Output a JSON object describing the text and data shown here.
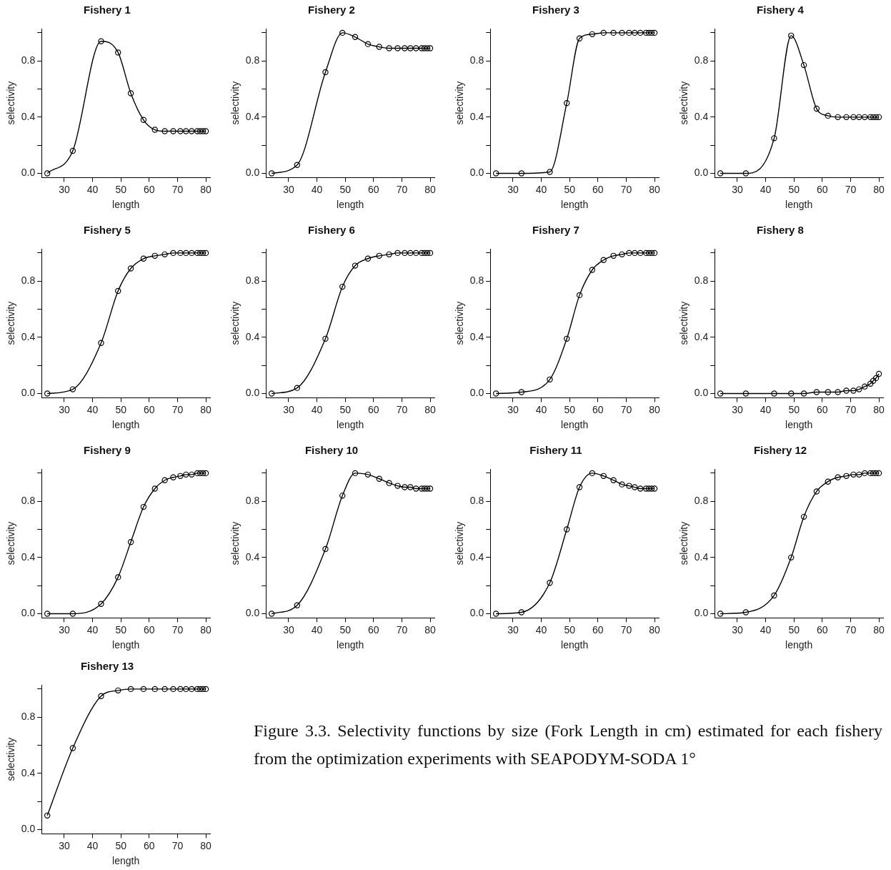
{
  "chart_data": [
    {
      "type": "line",
      "title": "Fishery 1",
      "xlabel": "length",
      "ylabel": "selectivity",
      "x": [
        24,
        33,
        43,
        49,
        53.5,
        58,
        62,
        65.5,
        68.5,
        71,
        73,
        75,
        77,
        78,
        79,
        80
      ],
      "xlim": [
        22,
        81.5
      ],
      "xticks": [
        30,
        40,
        50,
        60,
        70,
        80
      ],
      "ylim": [
        -0.03,
        1.03
      ],
      "yticks": [
        {
          "value": 0,
          "label": "0.0"
        },
        {
          "value": 0.2,
          "label": null
        },
        {
          "value": 0.4,
          "label": "0.4"
        },
        {
          "value": 0.6,
          "label": null
        },
        {
          "value": 0.8,
          "label": "0.8"
        },
        {
          "value": 1,
          "label": null
        }
      ],
      "marker": "circle",
      "line_style": "solid",
      "grid": false,
      "legend": false,
      "series": [
        {
          "color": "#000000",
          "values": [
            0,
            0.16,
            0.94,
            0.86,
            0.57,
            0.38,
            0.31,
            0.3,
            0.3,
            0.3,
            0.3,
            0.3,
            0.3,
            0.3,
            0.3,
            0.3
          ]
        }
      ]
    },
    {
      "type": "line",
      "title": "Fishery 2",
      "xlabel": "length",
      "ylabel": "selectivity",
      "x": [
        24,
        33,
        43,
        49,
        53.5,
        58,
        62,
        65.5,
        68.5,
        71,
        73,
        75,
        77,
        78,
        79,
        80
      ],
      "xlim": [
        22,
        81.5
      ],
      "xticks": [
        30,
        40,
        50,
        60,
        70,
        80
      ],
      "ylim": [
        -0.03,
        1.03
      ],
      "yticks": [
        {
          "value": 0,
          "label": "0.0"
        },
        {
          "value": 0.2,
          "label": null
        },
        {
          "value": 0.4,
          "label": "0.4"
        },
        {
          "value": 0.6,
          "label": null
        },
        {
          "value": 0.8,
          "label": "0.8"
        },
        {
          "value": 1,
          "label": null
        }
      ],
      "marker": "circle",
      "line_style": "solid",
      "grid": false,
      "legend": false,
      "series": [
        {
          "color": "#000000",
          "values": [
            0,
            0.06,
            0.72,
            1,
            0.97,
            0.92,
            0.9,
            0.89,
            0.89,
            0.89,
            0.89,
            0.89,
            0.89,
            0.89,
            0.89,
            0.89
          ]
        }
      ]
    },
    {
      "type": "line",
      "title": "Fishery 3",
      "xlabel": "length",
      "ylabel": "selectivity",
      "x": [
        24,
        33,
        43,
        49,
        53.5,
        58,
        62,
        65.5,
        68.5,
        71,
        73,
        75,
        77,
        78,
        79,
        80
      ],
      "xlim": [
        22,
        81.5
      ],
      "xticks": [
        30,
        40,
        50,
        60,
        70,
        80
      ],
      "ylim": [
        -0.03,
        1.03
      ],
      "yticks": [
        {
          "value": 0,
          "label": "0.0"
        },
        {
          "value": 0.2,
          "label": null
        },
        {
          "value": 0.4,
          "label": "0.4"
        },
        {
          "value": 0.6,
          "label": null
        },
        {
          "value": 0.8,
          "label": "0.8"
        },
        {
          "value": 1,
          "label": null
        }
      ],
      "marker": "circle",
      "line_style": "solid",
      "grid": false,
      "legend": false,
      "series": [
        {
          "color": "#000000",
          "values": [
            0,
            0,
            0.01,
            0.5,
            0.96,
            0.99,
            1,
            1,
            1,
            1,
            1,
            1,
            1,
            1,
            1,
            1
          ]
        }
      ]
    },
    {
      "type": "line",
      "title": "Fishery 4",
      "xlabel": "length",
      "ylabel": "selectivity",
      "x": [
        24,
        33,
        43,
        49,
        53.5,
        58,
        62,
        65.5,
        68.5,
        71,
        73,
        75,
        77,
        78,
        79,
        80
      ],
      "xlim": [
        22,
        81.5
      ],
      "xticks": [
        30,
        40,
        50,
        60,
        70,
        80
      ],
      "ylim": [
        -0.03,
        1.03
      ],
      "yticks": [
        {
          "value": 0,
          "label": "0.0"
        },
        {
          "value": 0.2,
          "label": null
        },
        {
          "value": 0.4,
          "label": "0.4"
        },
        {
          "value": 0.6,
          "label": null
        },
        {
          "value": 0.8,
          "label": "0.8"
        },
        {
          "value": 1,
          "label": null
        }
      ],
      "marker": "circle",
      "line_style": "solid",
      "grid": false,
      "legend": false,
      "series": [
        {
          "color": "#000000",
          "values": [
            0,
            0,
            0.25,
            0.98,
            0.77,
            0.46,
            0.41,
            0.4,
            0.4,
            0.4,
            0.4,
            0.4,
            0.4,
            0.4,
            0.4,
            0.4
          ]
        }
      ]
    },
    {
      "type": "line",
      "title": "Fishery 5",
      "xlabel": "length",
      "ylabel": "selectivity",
      "x": [
        24,
        33,
        43,
        49,
        53.5,
        58,
        62,
        65.5,
        68.5,
        71,
        73,
        75,
        77,
        78,
        79,
        80
      ],
      "xlim": [
        22,
        81.5
      ],
      "xticks": [
        30,
        40,
        50,
        60,
        70,
        80
      ],
      "ylim": [
        -0.03,
        1.03
      ],
      "yticks": [
        {
          "value": 0,
          "label": "0.0"
        },
        {
          "value": 0.2,
          "label": null
        },
        {
          "value": 0.4,
          "label": "0.4"
        },
        {
          "value": 0.6,
          "label": null
        },
        {
          "value": 0.8,
          "label": "0.8"
        },
        {
          "value": 1,
          "label": null
        }
      ],
      "marker": "circle",
      "line_style": "solid",
      "grid": false,
      "legend": false,
      "series": [
        {
          "color": "#000000",
          "values": [
            0,
            0.03,
            0.36,
            0.73,
            0.89,
            0.96,
            0.98,
            0.99,
            1,
            1,
            1,
            1,
            1,
            1,
            1,
            1
          ]
        }
      ]
    },
    {
      "type": "line",
      "title": "Fishery 6",
      "xlabel": "length",
      "ylabel": "selectivity",
      "x": [
        24,
        33,
        43,
        49,
        53.5,
        58,
        62,
        65.5,
        68.5,
        71,
        73,
        75,
        77,
        78,
        79,
        80
      ],
      "xlim": [
        22,
        81.5
      ],
      "xticks": [
        30,
        40,
        50,
        60,
        70,
        80
      ],
      "ylim": [
        -0.03,
        1.03
      ],
      "yticks": [
        {
          "value": 0,
          "label": "0.0"
        },
        {
          "value": 0.2,
          "label": null
        },
        {
          "value": 0.4,
          "label": "0.4"
        },
        {
          "value": 0.6,
          "label": null
        },
        {
          "value": 0.8,
          "label": "0.8"
        },
        {
          "value": 1,
          "label": null
        }
      ],
      "marker": "circle",
      "line_style": "solid",
      "grid": false,
      "legend": false,
      "series": [
        {
          "color": "#000000",
          "values": [
            0,
            0.04,
            0.39,
            0.76,
            0.91,
            0.96,
            0.98,
            0.99,
            1,
            1,
            1,
            1,
            1,
            1,
            1,
            1
          ]
        }
      ]
    },
    {
      "type": "line",
      "title": "Fishery 7",
      "xlabel": "length",
      "ylabel": "selectivity",
      "x": [
        24,
        33,
        43,
        49,
        53.5,
        58,
        62,
        65.5,
        68.5,
        71,
        73,
        75,
        77,
        78,
        79,
        80
      ],
      "xlim": [
        22,
        81.5
      ],
      "xticks": [
        30,
        40,
        50,
        60,
        70,
        80
      ],
      "ylim": [
        -0.03,
        1.03
      ],
      "yticks": [
        {
          "value": 0,
          "label": "0.0"
        },
        {
          "value": 0.2,
          "label": null
        },
        {
          "value": 0.4,
          "label": "0.4"
        },
        {
          "value": 0.6,
          "label": null
        },
        {
          "value": 0.8,
          "label": "0.8"
        },
        {
          "value": 1,
          "label": null
        }
      ],
      "marker": "circle",
      "line_style": "solid",
      "grid": false,
      "legend": false,
      "series": [
        {
          "color": "#000000",
          "values": [
            0,
            0.01,
            0.1,
            0.39,
            0.7,
            0.88,
            0.95,
            0.98,
            0.99,
            1,
            1,
            1,
            1,
            1,
            1,
            1
          ]
        }
      ]
    },
    {
      "type": "line",
      "title": "Fishery 8",
      "xlabel": "length",
      "ylabel": "selectivity",
      "x": [
        24,
        33,
        43,
        49,
        53.5,
        58,
        62,
        65.5,
        68.5,
        71,
        73,
        75,
        77,
        78,
        79,
        80
      ],
      "xlim": [
        22,
        81.5
      ],
      "xticks": [
        30,
        40,
        50,
        60,
        70,
        80
      ],
      "ylim": [
        -0.03,
        1.03
      ],
      "yticks": [
        {
          "value": 0,
          "label": "0.0"
        },
        {
          "value": 0.2,
          "label": null
        },
        {
          "value": 0.4,
          "label": "0.4"
        },
        {
          "value": 0.6,
          "label": null
        },
        {
          "value": 0.8,
          "label": "0.8"
        },
        {
          "value": 1,
          "label": null
        }
      ],
      "marker": "circle",
      "line_style": "solid",
      "grid": false,
      "legend": false,
      "series": [
        {
          "color": "#000000",
          "values": [
            0,
            0,
            0,
            0,
            0,
            0.01,
            0.01,
            0.01,
            0.02,
            0.02,
            0.03,
            0.05,
            0.07,
            0.09,
            0.11,
            0.14
          ]
        }
      ]
    },
    {
      "type": "line",
      "title": "Fishery 9",
      "xlabel": "length",
      "ylabel": "selectivity",
      "x": [
        24,
        33,
        43,
        49,
        53.5,
        58,
        62,
        65.5,
        68.5,
        71,
        73,
        75,
        77,
        78,
        79,
        80
      ],
      "xlim": [
        22,
        81.5
      ],
      "xticks": [
        30,
        40,
        50,
        60,
        70,
        80
      ],
      "ylim": [
        -0.03,
        1.03
      ],
      "yticks": [
        {
          "value": 0,
          "label": "0.0"
        },
        {
          "value": 0.2,
          "label": null
        },
        {
          "value": 0.4,
          "label": "0.4"
        },
        {
          "value": 0.6,
          "label": null
        },
        {
          "value": 0.8,
          "label": "0.8"
        },
        {
          "value": 1,
          "label": null
        }
      ],
      "marker": "circle",
      "line_style": "solid",
      "grid": false,
      "legend": false,
      "series": [
        {
          "color": "#000000",
          "values": [
            0,
            0,
            0.07,
            0.26,
            0.51,
            0.76,
            0.89,
            0.95,
            0.97,
            0.98,
            0.99,
            0.99,
            1,
            1,
            1,
            1
          ]
        }
      ]
    },
    {
      "type": "line",
      "title": "Fishery 10",
      "xlabel": "length",
      "ylabel": "selectivity",
      "x": [
        24,
        33,
        43,
        49,
        53.5,
        58,
        62,
        65.5,
        68.5,
        71,
        73,
        75,
        77,
        78,
        79,
        80
      ],
      "xlim": [
        22,
        81.5
      ],
      "xticks": [
        30,
        40,
        50,
        60,
        70,
        80
      ],
      "ylim": [
        -0.03,
        1.03
      ],
      "yticks": [
        {
          "value": 0,
          "label": "0.0"
        },
        {
          "value": 0.2,
          "label": null
        },
        {
          "value": 0.4,
          "label": "0.4"
        },
        {
          "value": 0.6,
          "label": null
        },
        {
          "value": 0.8,
          "label": "0.8"
        },
        {
          "value": 1,
          "label": null
        }
      ],
      "marker": "circle",
      "line_style": "solid",
      "grid": false,
      "legend": false,
      "series": [
        {
          "color": "#000000",
          "values": [
            0,
            0.06,
            0.46,
            0.84,
            1,
            0.99,
            0.96,
            0.93,
            0.91,
            0.9,
            0.9,
            0.89,
            0.89,
            0.89,
            0.89,
            0.89
          ]
        }
      ]
    },
    {
      "type": "line",
      "title": "Fishery 11",
      "xlabel": "length",
      "ylabel": "selectivity",
      "x": [
        24,
        33,
        43,
        49,
        53.5,
        58,
        62,
        65.5,
        68.5,
        71,
        73,
        75,
        77,
        78,
        79,
        80
      ],
      "xlim": [
        22,
        81.5
      ],
      "xticks": [
        30,
        40,
        50,
        60,
        70,
        80
      ],
      "ylim": [
        -0.03,
        1.03
      ],
      "yticks": [
        {
          "value": 0,
          "label": "0.0"
        },
        {
          "value": 0.2,
          "label": null
        },
        {
          "value": 0.4,
          "label": "0.4"
        },
        {
          "value": 0.6,
          "label": null
        },
        {
          "value": 0.8,
          "label": "0.8"
        },
        {
          "value": 1,
          "label": null
        }
      ],
      "marker": "circle",
      "line_style": "solid",
      "grid": false,
      "legend": false,
      "series": [
        {
          "color": "#000000",
          "values": [
            0,
            0.01,
            0.22,
            0.6,
            0.9,
            1,
            0.98,
            0.95,
            0.92,
            0.91,
            0.9,
            0.89,
            0.89,
            0.89,
            0.89,
            0.89
          ]
        }
      ]
    },
    {
      "type": "line",
      "title": "Fishery 12",
      "xlabel": "length",
      "ylabel": "selectivity",
      "x": [
        24,
        33,
        43,
        49,
        53.5,
        58,
        62,
        65.5,
        68.5,
        71,
        73,
        75,
        77,
        78,
        79,
        80
      ],
      "xlim": [
        22,
        81.5
      ],
      "xticks": [
        30,
        40,
        50,
        60,
        70,
        80
      ],
      "ylim": [
        -0.03,
        1.03
      ],
      "yticks": [
        {
          "value": 0,
          "label": "0.0"
        },
        {
          "value": 0.2,
          "label": null
        },
        {
          "value": 0.4,
          "label": "0.4"
        },
        {
          "value": 0.6,
          "label": null
        },
        {
          "value": 0.8,
          "label": "0.8"
        },
        {
          "value": 1,
          "label": null
        }
      ],
      "marker": "circle",
      "line_style": "solid",
      "grid": false,
      "legend": false,
      "series": [
        {
          "color": "#000000",
          "values": [
            0,
            0.01,
            0.13,
            0.4,
            0.69,
            0.87,
            0.94,
            0.97,
            0.98,
            0.99,
            0.99,
            1,
            1,
            1,
            1,
            1
          ]
        }
      ]
    },
    {
      "type": "line",
      "title": "Fishery 13",
      "xlabel": "length",
      "ylabel": "selectivity",
      "x": [
        24,
        33,
        43,
        49,
        53.5,
        58,
        62,
        65.5,
        68.5,
        71,
        73,
        75,
        77,
        78,
        79,
        80
      ],
      "xlim": [
        22,
        81.5
      ],
      "xticks": [
        30,
        40,
        50,
        60,
        70,
        80
      ],
      "ylim": [
        -0.03,
        1.03
      ],
      "yticks": [
        {
          "value": 0,
          "label": "0.0"
        },
        {
          "value": 0.2,
          "label": null
        },
        {
          "value": 0.4,
          "label": "0.4"
        },
        {
          "value": 0.6,
          "label": null
        },
        {
          "value": 0.8,
          "label": "0.8"
        },
        {
          "value": 1,
          "label": null
        }
      ],
      "marker": "circle",
      "line_style": "solid",
      "grid": false,
      "legend": false,
      "series": [
        {
          "color": "#000000",
          "values": [
            0.1,
            0.58,
            0.95,
            0.99,
            1,
            1,
            1,
            1,
            1,
            1,
            1,
            1,
            1,
            1,
            1,
            1
          ]
        }
      ]
    },
    {
      "type": "other",
      "annotations": [
        "Figure 3.3. Selectivity functions by size (Fork Length in cm) estimated for each fishery from the optimization experiments with SEAPODYM-SODA 1°"
      ]
    }
  ]
}
